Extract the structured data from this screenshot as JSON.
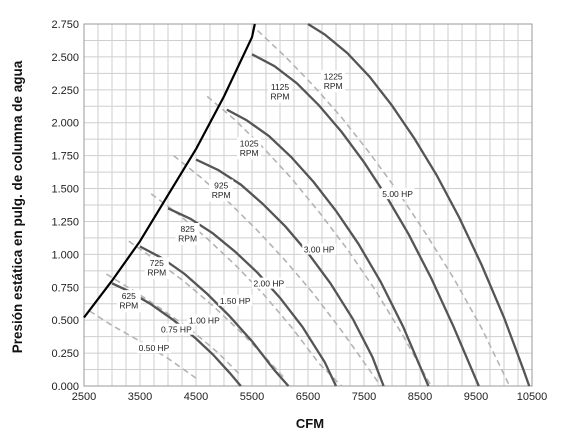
{
  "chart_data": {
    "type": "line",
    "title": "",
    "xlabel": "CFM",
    "ylabel": "Presión estática en pulg. de columna de agua",
    "xlim": [
      2500,
      10500
    ],
    "ylim": [
      0,
      2.75
    ],
    "x_ticks": [
      "2500",
      "3500",
      "4500",
      "5500",
      "6500",
      "7500",
      "8500",
      "9500",
      "10500"
    ],
    "y_ticks": [
      "0.000",
      "0.250",
      "0.500",
      "0.750",
      "1.000",
      "1.250",
      "1.500",
      "1.750",
      "2.000",
      "2.250",
      "2.500",
      "2.750"
    ],
    "grid": true,
    "colors": {
      "stall": "#000000",
      "rpm": "#555555",
      "hp": "#b4b4b4",
      "grid": "#cfcfcf"
    },
    "stall_line": {
      "x": [
        2500,
        3000,
        3500,
        4000,
        4500,
        5000,
        5500,
        5550
      ],
      "y": [
        0.52,
        0.8,
        1.1,
        1.45,
        1.8,
        2.2,
        2.65,
        2.75
      ]
    },
    "rpm_curves": [
      {
        "label": [
          "625",
          "RPM"
        ],
        "label_at": [
          3300,
          0.66
        ],
        "x": [
          3000,
          3300,
          3700,
          4100,
          4500,
          4800,
          5100,
          5300
        ],
        "y": [
          0.78,
          0.72,
          0.62,
          0.5,
          0.36,
          0.24,
          0.1,
          0.0
        ]
      },
      {
        "label": [
          "725",
          "RPM"
        ],
        "label_at": [
          3800,
          0.91
        ],
        "x": [
          3500,
          3900,
          4300,
          4700,
          5100,
          5500,
          5900,
          6150
        ],
        "y": [
          1.06,
          0.97,
          0.85,
          0.7,
          0.53,
          0.34,
          0.12,
          0.0
        ]
      },
      {
        "label": [
          "825",
          "RPM"
        ],
        "label_at": [
          4350,
          1.17
        ],
        "x": [
          4000,
          4400,
          4800,
          5200,
          5600,
          6000,
          6400,
          6800,
          7000
        ],
        "y": [
          1.35,
          1.27,
          1.16,
          1.02,
          0.86,
          0.67,
          0.45,
          0.18,
          0.0
        ]
      },
      {
        "label": [
          "925",
          "RPM"
        ],
        "label_at": [
          4950,
          1.5
        ],
        "x": [
          4500,
          4900,
          5300,
          5700,
          6100,
          6500,
          6900,
          7300,
          7650,
          7850
        ],
        "y": [
          1.72,
          1.64,
          1.53,
          1.38,
          1.21,
          1.01,
          0.78,
          0.51,
          0.22,
          0.0
        ]
      },
      {
        "label": [
          "1025",
          "RPM"
        ],
        "label_at": [
          5450,
          1.82
        ],
        "x": [
          5050,
          5400,
          5800,
          6200,
          6600,
          7000,
          7400,
          7800,
          8200,
          8500,
          8650
        ],
        "y": [
          2.1,
          2.02,
          1.9,
          1.74,
          1.55,
          1.33,
          1.08,
          0.79,
          0.45,
          0.15,
          0.0
        ]
      },
      {
        "label": [
          "1125",
          "RPM"
        ],
        "label_at": [
          6000,
          2.25
        ],
        "x": [
          5500,
          5900,
          6300,
          6700,
          7100,
          7500,
          7900,
          8300,
          8700,
          9100,
          9400,
          9550
        ],
        "y": [
          2.52,
          2.43,
          2.3,
          2.13,
          1.93,
          1.7,
          1.44,
          1.15,
          0.82,
          0.45,
          0.15,
          0.0
        ]
      },
      {
        "label": [
          "1225",
          "RPM"
        ],
        "label_at": [
          6950,
          2.33
        ],
        "x": [
          6500,
          6800,
          7200,
          7600,
          8000,
          8400,
          8800,
          9200,
          9600,
          10000,
          10350,
          10450
        ],
        "y": [
          2.75,
          2.67,
          2.53,
          2.35,
          2.13,
          1.88,
          1.6,
          1.28,
          0.92,
          0.52,
          0.12,
          0.0
        ]
      }
    ],
    "hp_curves": [
      {
        "label": "0.50 HP",
        "label_at": [
          3750,
          0.28
        ],
        "x": [
          2600,
          3000,
          3500,
          4000,
          4500
        ],
        "y": [
          0.57,
          0.46,
          0.34,
          0.21,
          0.06
        ]
      },
      {
        "label": "0.75 HP",
        "label_at": [
          4150,
          0.42
        ],
        "x": [
          2900,
          3400,
          3900,
          4400,
          4900,
          5300
        ],
        "y": [
          0.85,
          0.72,
          0.58,
          0.43,
          0.25,
          0.08
        ]
      },
      {
        "label": "1.00 HP",
        "label_at": [
          4650,
          0.49
        ],
        "x": [
          3300,
          3800,
          4300,
          4800,
          5300,
          5800,
          6100
        ],
        "y": [
          1.1,
          0.95,
          0.79,
          0.61,
          0.41,
          0.19,
          0.05
        ]
      },
      {
        "label": "1.50 HP",
        "label_at": [
          5200,
          0.64
        ],
        "x": [
          3700,
          4200,
          4700,
          5200,
          5700,
          6200,
          6700,
          7100
        ],
        "y": [
          1.46,
          1.3,
          1.12,
          0.92,
          0.7,
          0.45,
          0.17,
          0.0
        ]
      },
      {
        "label": "2.00 HP",
        "label_at": [
          5800,
          0.77
        ],
        "x": [
          4100,
          4600,
          5100,
          5600,
          6100,
          6600,
          7100,
          7500,
          7800
        ],
        "y": [
          1.75,
          1.58,
          1.39,
          1.18,
          0.95,
          0.7,
          0.42,
          0.18,
          0.0
        ]
      },
      {
        "label": "3.00 HP",
        "label_at": [
          6700,
          1.03
        ],
        "x": [
          4700,
          5200,
          5700,
          6200,
          6700,
          7200,
          7700,
          8200,
          8700
        ],
        "y": [
          2.2,
          2.02,
          1.81,
          1.58,
          1.32,
          1.04,
          0.73,
          0.38,
          0.0
        ]
      },
      {
        "label": "5.00 HP",
        "label_at": [
          8100,
          1.45
        ],
        "x": [
          5600,
          6100,
          6600,
          7100,
          7600,
          8100,
          8600,
          9100,
          9600,
          10100
        ],
        "y": [
          2.7,
          2.5,
          2.28,
          2.04,
          1.77,
          1.48,
          1.16,
          0.82,
          0.44,
          0.0
        ]
      }
    ]
  }
}
